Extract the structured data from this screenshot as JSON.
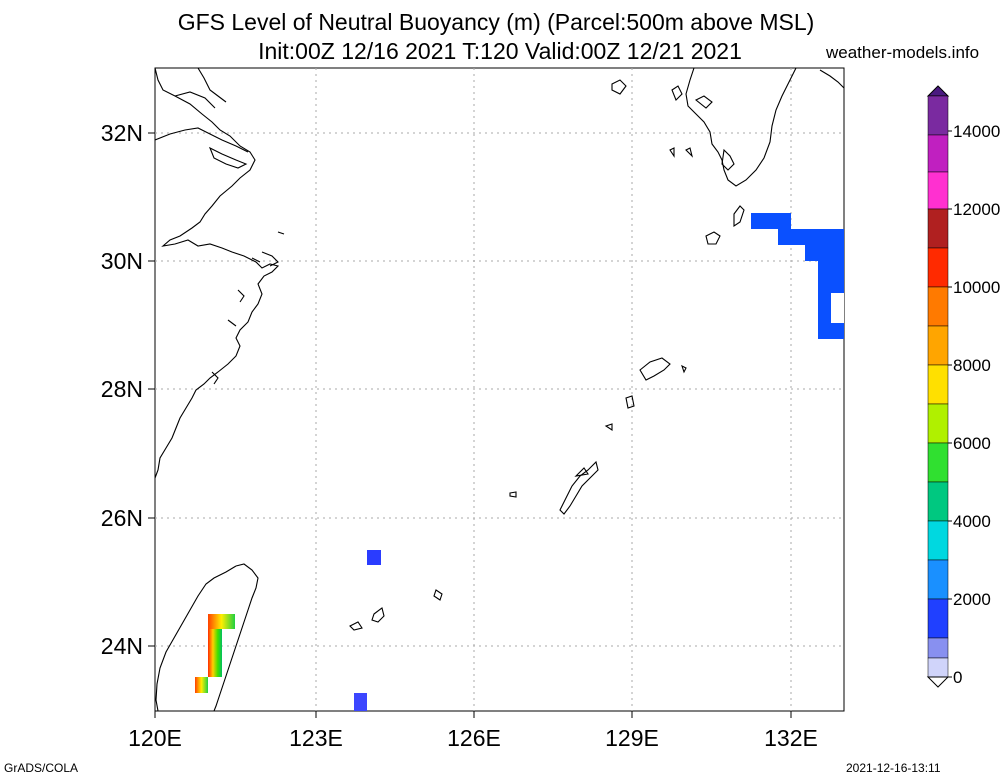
{
  "header": {
    "title_line1": "GFS Level of Neutral Buoyancy (m) (Parcel:500m above MSL)",
    "title_line2": "Init:00Z 12/16 2021 T:120 Valid:00Z 12/21 2021",
    "site": "weather-models.info"
  },
  "footer": {
    "left": "GrADS/COLA",
    "right": "2021-12-16-13:11"
  },
  "map": {
    "lat_labels": [
      "32N",
      "30N",
      "28N",
      "26N",
      "24N"
    ],
    "lon_labels": [
      "120E",
      "123E",
      "126E",
      "129E",
      "132E"
    ],
    "extent": {
      "lon_min": 120,
      "lon_max": 133,
      "lat_min": 23,
      "lat_max": 33
    }
  },
  "colorbar": {
    "labels": [
      "14000",
      "12000",
      "10000",
      "8000",
      "6000",
      "4000",
      "2000",
      "0"
    ]
  },
  "colors": {
    "blue_fill": "#0a50ff",
    "mid_blue": "#2a3cff",
    "coast": "#000000",
    "grid": "#aaaaaa"
  }
}
